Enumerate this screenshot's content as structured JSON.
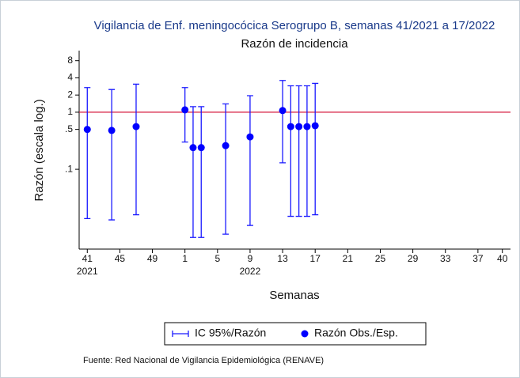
{
  "chart_data": {
    "type": "scatter",
    "title": "Vigilancia de Enf. meningocócica Serogrupo B, semanas 41/2021 a 17/2022",
    "subtitle": "Razón de incidencia",
    "y_label": "Razón (escala log.)",
    "x_label": "Semanas",
    "source": "Fuente: Red Nacional de Vigilancia Epidemiológica (RENAVE)",
    "y_log": true,
    "xlim": [
      -1,
      52
    ],
    "ylim": [
      0.004,
      12
    ],
    "xticks": [
      {
        "value": 0,
        "label": "41"
      },
      {
        "value": 4,
        "label": "45"
      },
      {
        "value": 8,
        "label": "49"
      },
      {
        "value": 12,
        "label": "1"
      },
      {
        "value": 16,
        "label": "5"
      },
      {
        "value": 20,
        "label": "9"
      },
      {
        "value": 24,
        "label": "13"
      },
      {
        "value": 28,
        "label": "17"
      },
      {
        "value": 32,
        "label": "21"
      },
      {
        "value": 36,
        "label": "25"
      },
      {
        "value": 40,
        "label": "29"
      },
      {
        "value": 44,
        "label": "33"
      },
      {
        "value": 48,
        "label": "37"
      },
      {
        "value": 51,
        "label": "40"
      }
    ],
    "x_year_labels": [
      {
        "value": 0,
        "label": "2021"
      },
      {
        "value": 20,
        "label": "2022"
      }
    ],
    "yticks": [
      8,
      4,
      2,
      1,
      {
        "value": 0.5,
        "label": ".5"
      },
      {
        "value": 0.1,
        "label": ".1"
      }
    ],
    "reference_line": {
      "value": 1,
      "color": "#d6183c"
    },
    "x": [
      0,
      3,
      6,
      12,
      13,
      14,
      17,
      20,
      24,
      25,
      26,
      27,
      28
    ],
    "series": [
      {
        "name": "Razón Obs./Esp.",
        "color": "#0000ff",
        "values": [
          0.5,
          0.48,
          0.56,
          1.1,
          0.24,
          0.24,
          0.26,
          0.37,
          1.07,
          0.56,
          0.56,
          0.56,
          0.58
        ]
      }
    ],
    "error_bars": {
      "name": "IC 95%/Razón",
      "color": "#1a1aff",
      "low": [
        0.0137,
        0.013,
        0.016,
        0.3,
        0.0064,
        0.0064,
        0.0073,
        0.0104,
        0.13,
        0.015,
        0.015,
        0.015,
        0.016
      ],
      "high": [
        2.7,
        2.5,
        3.1,
        2.7,
        1.25,
        1.25,
        1.4,
        1.95,
        3.6,
        2.9,
        2.9,
        2.9,
        3.2
      ]
    }
  }
}
